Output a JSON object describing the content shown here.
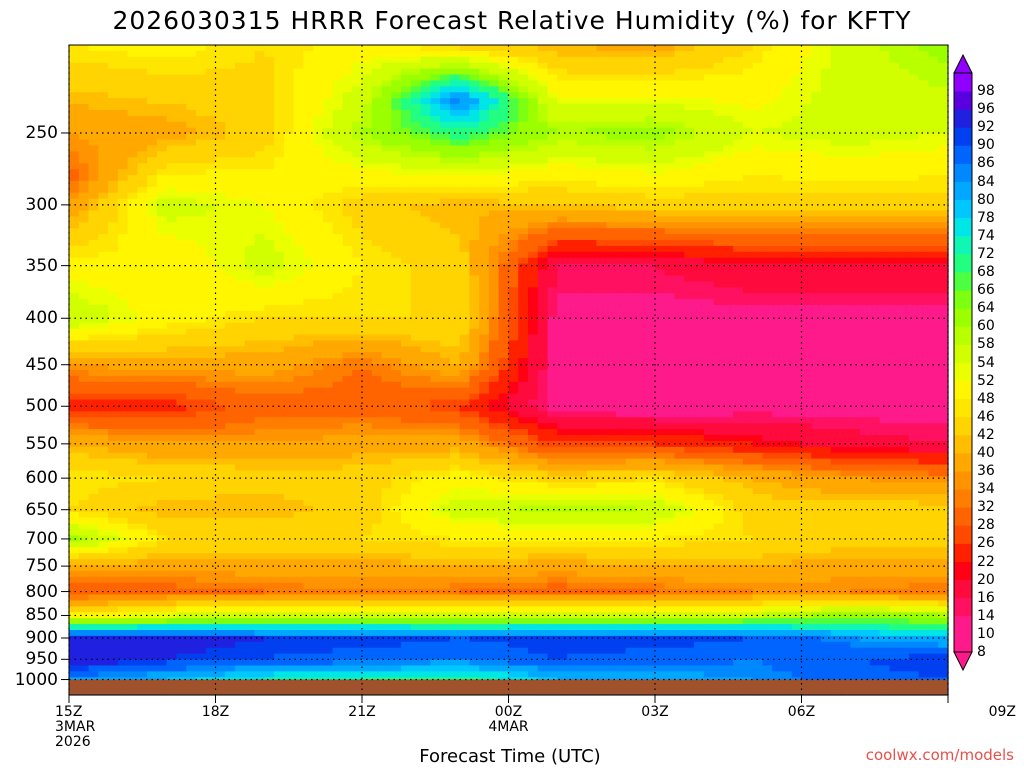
{
  "title": "2026030315 HRRR Forecast Relative Humidity (%) for KFTY",
  "credit": "coolwx.com/models",
  "colors": {
    "ground": "#a0522d",
    "credit": "#e8504a"
  },
  "chart_data": {
    "type": "heatmap",
    "title": "2026030315 HRRR Forecast Relative Humidity (%) for KFTY",
    "xlabel": "Forecast Time (UTC)",
    "ylabel": "",
    "x_ticks": [
      {
        "hour": 0,
        "label": "15Z\n3MAR\n2026"
      },
      {
        "hour": 3,
        "label": "18Z"
      },
      {
        "hour": 6,
        "label": "21Z"
      },
      {
        "hour": 9,
        "label": "00Z\n4MAR"
      },
      {
        "hour": 12,
        "label": "03Z"
      },
      {
        "hour": 15,
        "label": "06Z"
      },
      {
        "hour": 18,
        "label": "09Z"
      }
    ],
    "xlim": [
      0,
      18
    ],
    "y_ticks": [
      250,
      300,
      350,
      400,
      450,
      500,
      550,
      600,
      650,
      700,
      750,
      800,
      850,
      900,
      950,
      1000
    ],
    "y_scale": "log",
    "ylim": [
      1040,
      200
    ],
    "grid": true,
    "surface_pressure_hpa": 1000,
    "colorbar": {
      "position": "right",
      "levels": [
        8,
        10,
        14,
        16,
        20,
        22,
        26,
        28,
        32,
        34,
        36,
        40,
        42,
        46,
        48,
        52,
        54,
        58,
        60,
        64,
        66,
        68,
        72,
        74,
        78,
        80,
        84,
        86,
        90,
        92,
        96,
        98
      ],
      "colors": [
        "#ff1a8c",
        "#ff1a8c",
        "#ff1060",
        "#ff0a3c",
        "#ff0014",
        "#ff2000",
        "#ff4a00",
        "#ff6400",
        "#ff7e00",
        "#ff9400",
        "#ffa800",
        "#ffbe00",
        "#ffd400",
        "#ffe600",
        "#fff600",
        "#eaff00",
        "#d2ff00",
        "#b8ff00",
        "#9cff00",
        "#7cff10",
        "#4cff40",
        "#22ff80",
        "#10f6b4",
        "#00e6e6",
        "#00c8ff",
        "#00a8ff",
        "#0088ff",
        "#0064ff",
        "#0040f0",
        "#2020e0",
        "#5a00e0",
        "#9000ff"
      ]
    },
    "series": [
      {
        "hour": 0,
        "pressures": [
          200,
          280,
          300,
          350,
          400,
          450,
          500,
          550,
          600,
          650,
          700,
          750,
          800,
          850,
          900,
          950,
          1000
        ],
        "values": [
          48,
          30,
          36,
          50,
          58,
          36,
          24,
          40,
          48,
          46,
          62,
          38,
          28,
          50,
          94,
          96,
          84
        ]
      },
      {
        "hour": 2,
        "pressures": [
          200,
          250,
          300,
          350,
          400,
          450,
          500,
          550,
          600,
          650,
          700,
          750,
          800,
          850,
          900,
          950,
          1000
        ],
        "values": [
          50,
          38,
          56,
          48,
          50,
          38,
          24,
          36,
          46,
          40,
          46,
          38,
          30,
          54,
          94,
          92,
          80
        ]
      },
      {
        "hour": 4,
        "pressures": [
          200,
          250,
          300,
          350,
          400,
          450,
          500,
          550,
          600,
          650,
          700,
          750,
          800,
          850,
          900,
          950,
          1000
        ],
        "values": [
          46,
          44,
          52,
          56,
          46,
          38,
          30,
          36,
          44,
          40,
          46,
          38,
          32,
          56,
          92,
          90,
          74
        ]
      },
      {
        "hour": 6,
        "pressures": [
          200,
          250,
          300,
          350,
          400,
          450,
          500,
          550,
          600,
          650,
          700,
          750,
          800,
          850,
          900,
          950,
          1000
        ],
        "values": [
          50,
          60,
          44,
          48,
          46,
          32,
          30,
          38,
          44,
          44,
          46,
          38,
          34,
          56,
          92,
          88,
          72
        ]
      },
      {
        "hour": 8,
        "pressures": [
          200,
          230,
          260,
          300,
          350,
          400,
          450,
          500,
          550,
          600,
          650,
          700,
          750,
          800,
          850,
          900,
          950,
          1000
        ],
        "values": [
          44,
          86,
          64,
          40,
          44,
          46,
          40,
          26,
          38,
          50,
          56,
          48,
          40,
          32,
          56,
          90,
          86,
          70
        ]
      },
      {
        "hour": 10,
        "pressures": [
          200,
          250,
          300,
          350,
          400,
          450,
          500,
          550,
          600,
          650,
          700,
          750,
          800,
          850,
          900,
          950,
          1000
        ],
        "values": [
          40,
          60,
          42,
          16,
          12,
          12,
          12,
          26,
          44,
          60,
          48,
          38,
          30,
          56,
          92,
          90,
          80
        ]
      },
      {
        "hour": 12,
        "pressures": [
          200,
          250,
          300,
          350,
          400,
          450,
          500,
          550,
          600,
          650,
          700,
          750,
          800,
          850,
          900,
          950,
          1000
        ],
        "values": [
          38,
          62,
          44,
          16,
          12,
          10,
          10,
          26,
          46,
          58,
          48,
          40,
          32,
          56,
          92,
          88,
          82
        ]
      },
      {
        "hour": 14,
        "pressures": [
          200,
          250,
          300,
          350,
          400,
          450,
          500,
          550,
          600,
          650,
          700,
          750,
          800,
          850,
          900,
          950,
          1000
        ],
        "values": [
          46,
          54,
          44,
          20,
          12,
          12,
          12,
          22,
          40,
          44,
          46,
          40,
          34,
          58,
          90,
          86,
          84
        ]
      },
      {
        "hour": 16,
        "pressures": [
          200,
          250,
          300,
          350,
          400,
          450,
          500,
          550,
          600,
          650,
          700,
          750,
          800,
          850,
          900,
          950,
          1000
        ],
        "values": [
          56,
          56,
          44,
          20,
          12,
          12,
          12,
          18,
          36,
          44,
          44,
          38,
          34,
          62,
          84,
          90,
          88
        ]
      },
      {
        "hour": 18,
        "pressures": [
          200,
          250,
          300,
          350,
          400,
          450,
          500,
          550,
          600,
          650,
          700,
          750,
          800,
          850,
          900,
          950,
          1000
        ],
        "values": [
          62,
          54,
          44,
          20,
          12,
          12,
          12,
          16,
          34,
          44,
          44,
          38,
          32,
          60,
          80,
          92,
          90
        ]
      }
    ]
  }
}
